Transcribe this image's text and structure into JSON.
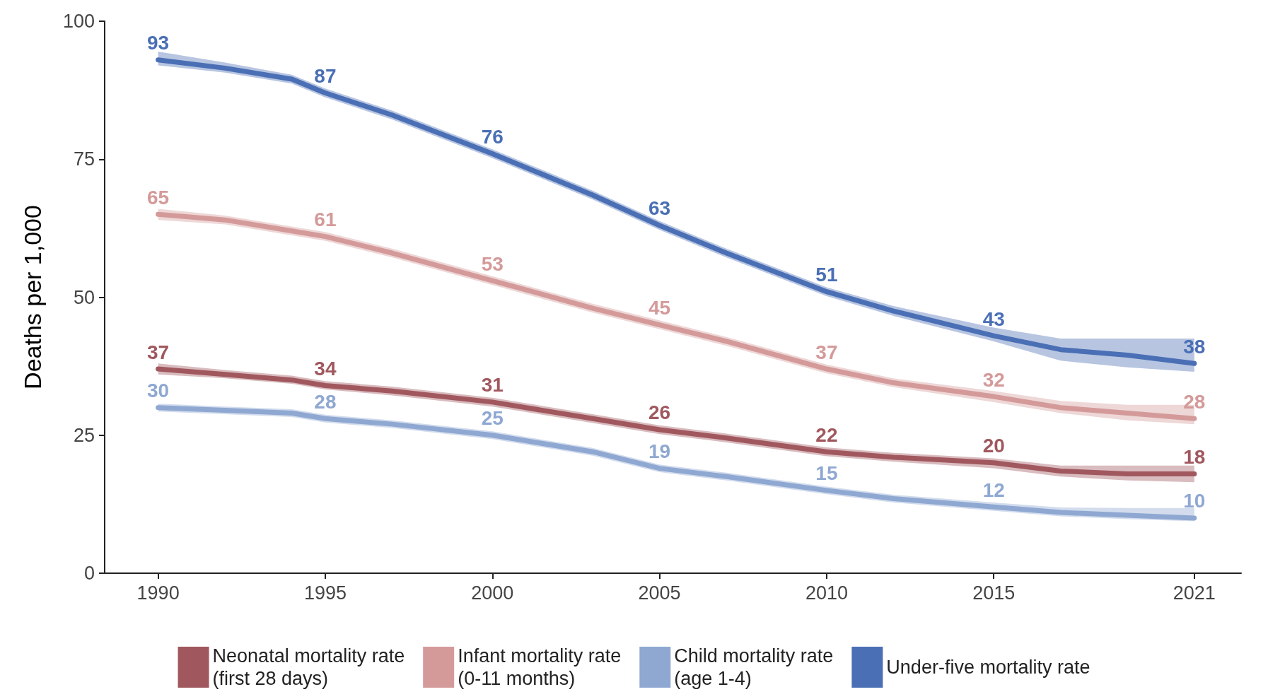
{
  "chart_data": {
    "type": "line",
    "ylabel": "Deaths per 1,000",
    "x": [
      1990,
      1992,
      1994,
      1995,
      1997,
      2000,
      2003,
      2005,
      2007,
      2010,
      2012,
      2015,
      2017,
      2019,
      2021
    ],
    "xlim": [
      1988.4,
      2022.4
    ],
    "xticks": [
      1990,
      1995,
      2000,
      2005,
      2010,
      2015,
      2021
    ],
    "ylim": [
      0,
      100
    ],
    "yticks": [
      0,
      25,
      50,
      75,
      100
    ],
    "grid": false,
    "legend": "bottom",
    "series": [
      {
        "name": "Neonatal mortality rate\n(first 28 days)",
        "color": "#a0585e",
        "values": [
          37,
          36,
          35,
          34,
          33,
          31,
          28,
          26,
          24.5,
          22,
          21,
          20,
          18.5,
          18,
          18
        ],
        "lower": [
          36,
          35.3,
          34.3,
          33.3,
          32.2,
          30.2,
          27.2,
          25.2,
          23.7,
          21.2,
          20.2,
          19,
          17.5,
          16.8,
          16.5
        ],
        "upper": [
          38,
          36.8,
          35.8,
          34.8,
          33.8,
          31.8,
          28.8,
          26.8,
          25.3,
          22.8,
          21.8,
          20.8,
          19.5,
          19.5,
          19.5
        ],
        "value_labels": [
          "37",
          null,
          null,
          "34",
          null,
          "31",
          null,
          "26",
          null,
          "22",
          null,
          "20",
          null,
          null,
          "18"
        ]
      },
      {
        "name": "Infant mortality rate\n(0-11 months)",
        "color": "#d49a9a",
        "values": [
          65,
          64,
          62,
          61,
          58,
          53,
          48,
          45,
          42,
          37,
          34.5,
          32,
          30,
          29,
          28
        ],
        "lower": [
          64,
          63.2,
          61.2,
          60.2,
          57.2,
          52.2,
          47.2,
          44.2,
          41.2,
          36.2,
          33.7,
          31,
          29,
          27.7,
          27
        ],
        "upper": [
          66,
          64.8,
          62.8,
          61.8,
          58.8,
          53.8,
          48.8,
          45.8,
          42.8,
          37.8,
          35.3,
          33,
          31.2,
          30.5,
          30.5
        ],
        "value_labels": [
          "65",
          null,
          null,
          "61",
          null,
          "53",
          null,
          "45",
          null,
          "37",
          null,
          "32",
          null,
          null,
          "28"
        ]
      },
      {
        "name": "Child mortality rate\n(age 1-4)",
        "color": "#8fa8d2",
        "values": [
          30,
          29.5,
          29,
          28,
          27,
          25,
          22,
          19,
          17.5,
          15,
          13.5,
          12,
          11,
          10.5,
          10
        ],
        "lower": [
          29.3,
          28.8,
          28.3,
          27.3,
          26.3,
          24.3,
          21.3,
          18.3,
          16.8,
          14.3,
          12.8,
          11.3,
          10.3,
          9.8,
          9.4
        ],
        "upper": [
          30.7,
          30.2,
          29.7,
          28.7,
          27.7,
          25.7,
          22.7,
          19.7,
          18.2,
          15.7,
          14.2,
          12.8,
          11.9,
          11.8,
          11.8
        ],
        "value_labels": [
          "30",
          null,
          null,
          "28",
          null,
          "25",
          null,
          "19",
          null,
          "15",
          null,
          "12",
          null,
          null,
          "10"
        ]
      },
      {
        "name": "Under-five mortality rate",
        "color": "#4a6fb5",
        "values": [
          93,
          91.5,
          89.5,
          87,
          83,
          76,
          68.5,
          63,
          58,
          51,
          47.5,
          43,
          40.5,
          39.5,
          38
        ],
        "lower": [
          92,
          90.7,
          88.7,
          86.2,
          82.2,
          75.2,
          67.7,
          62.2,
          57.2,
          50.2,
          46.6,
          42,
          38.5,
          37.3,
          36.5
        ],
        "upper": [
          94.5,
          92.5,
          90.3,
          87.8,
          83.8,
          76.8,
          69.3,
          63.8,
          58.8,
          51.8,
          48.4,
          44.5,
          42.5,
          42.5,
          42.5
        ],
        "value_labels": [
          "93",
          null,
          null,
          "87",
          null,
          "76",
          null,
          "63",
          null,
          "51",
          null,
          "43",
          null,
          null,
          "38"
        ]
      }
    ]
  }
}
